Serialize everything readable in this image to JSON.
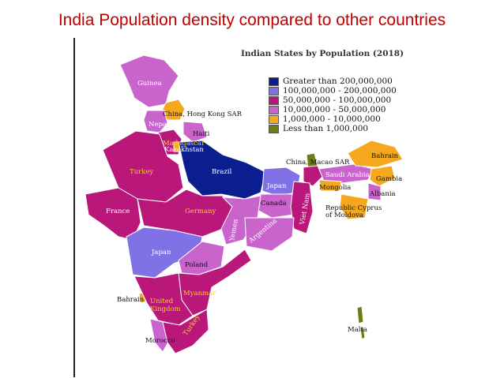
{
  "slide": {
    "title": "India Population density compared to other countries"
  },
  "map": {
    "title": "Indian States by Population (2018)",
    "legend": [
      {
        "label": "Greater than 200,000,000",
        "color": "#0b1e8f"
      },
      {
        "label": "100,000,000 - 200,000,000",
        "color": "#8072e6"
      },
      {
        "label": "50,000,000 - 100,000,000",
        "color": "#b9177a"
      },
      {
        "label": "10,000,000 - 50,000,000",
        "color": "#c864cc"
      },
      {
        "label": "1,000,000 - 10,000,000",
        "color": "#f5a81e"
      },
      {
        "label": "Less than 1,000,000",
        "color": "#6f7b14"
      }
    ],
    "colors": {
      "land": "#b9177a",
      "outline": "#ffffff"
    },
    "labels": {
      "guinea": "Guinea",
      "china_hk": "China, Hong Kong SAR",
      "nepal": "Nepal",
      "haiti": "Haiti",
      "madagascar": "Madagascar",
      "kazakhstan": "Kazakhstan",
      "turkey_n": "Turkey",
      "brazil": "Brazil",
      "china_macao": "China, Macao SAR",
      "bahrain_ne": "Bahrain",
      "saudi": "Saudi Arabia",
      "gambia": "Gambia",
      "japan_e": "Japan",
      "mongolia": "Mongolia",
      "albania": "Albania",
      "canada": "Canada",
      "vietnam": "Viet Nam",
      "cyprus1": "Republic Cyprus",
      "cyprus2": "of Moldova",
      "france": "France",
      "germany": "Germany",
      "yemen": "Yemen",
      "argentina": "Argentina",
      "japan_s": "Japan",
      "poland": "Poland",
      "myanmar": "Myanmar",
      "bahrain_s": "Bahrain",
      "uk1": "United",
      "uk2": "Kingdom",
      "morocco": "Morocco",
      "turkey_s": "Turkey",
      "malta": "Malta"
    }
  }
}
